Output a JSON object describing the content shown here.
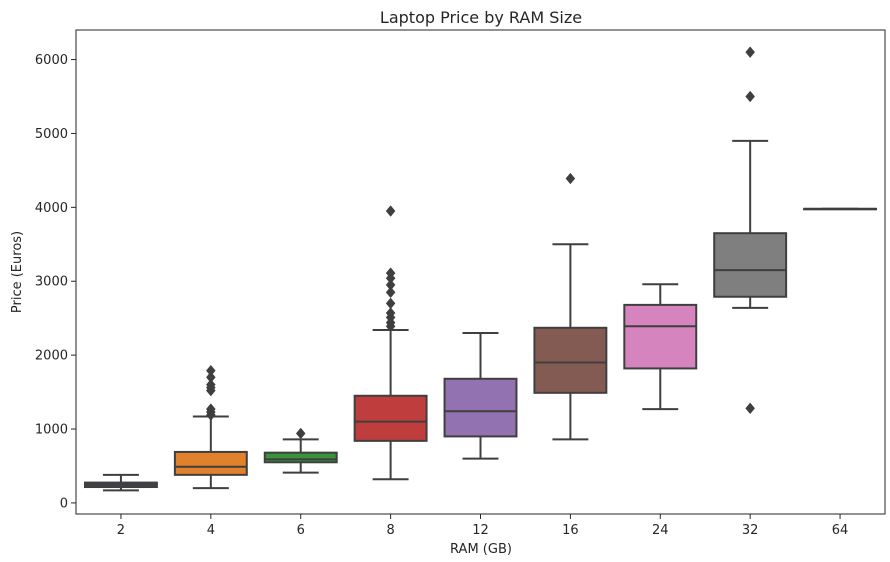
{
  "chart_data": {
    "type": "box",
    "title": "Laptop Price by RAM Size",
    "xlabel": "RAM (GB)",
    "ylabel": "Price (Euros)",
    "categories": [
      "2",
      "4",
      "6",
      "8",
      "12",
      "16",
      "24",
      "32",
      "64"
    ],
    "yticks": [
      0,
      1000,
      2000,
      3000,
      4000,
      5000,
      6000
    ],
    "ylim": [
      -150,
      6400
    ],
    "grid": false,
    "legend": "none",
    "boxes": [
      {
        "category": "2",
        "color": "#3b4f6b",
        "whisker_low": 170,
        "q1": 215,
        "median": 245,
        "q3": 275,
        "whisker_high": 380,
        "outliers": []
      },
      {
        "category": "4",
        "color": "#e1812c",
        "whisker_low": 200,
        "q1": 380,
        "median": 490,
        "q3": 690,
        "whisker_high": 1170,
        "outliers": [
          1190,
          1230,
          1270,
          1520,
          1560,
          1600,
          1700,
          1790
        ]
      },
      {
        "category": "6",
        "color": "#3a923a",
        "whisker_low": 410,
        "q1": 550,
        "median": 590,
        "q3": 680,
        "whisker_high": 860,
        "outliers": [
          940
        ]
      },
      {
        "category": "8",
        "color": "#c03d3e",
        "whisker_low": 320,
        "q1": 840,
        "median": 1100,
        "q3": 1450,
        "whisker_high": 2340,
        "outliers": [
          2390,
          2440,
          2510,
          2570,
          2700,
          2850,
          2950,
          3040,
          3110,
          3950
        ]
      },
      {
        "category": "12",
        "color": "#9372b2",
        "whisker_low": 600,
        "q1": 900,
        "median": 1240,
        "q3": 1680,
        "whisker_high": 2300,
        "outliers": []
      },
      {
        "category": "16",
        "color": "#845b53",
        "whisker_low": 860,
        "q1": 1490,
        "median": 1900,
        "q3": 2370,
        "whisker_high": 3500,
        "outliers": [
          4390
        ]
      },
      {
        "category": "24",
        "color": "#d684bd",
        "whisker_low": 1270,
        "q1": 1820,
        "median": 2390,
        "q3": 2680,
        "whisker_high": 2960,
        "outliers": []
      },
      {
        "category": "32",
        "color": "#7f7f7f",
        "whisker_low": 2640,
        "q1": 2790,
        "median": 3150,
        "q3": 3650,
        "whisker_high": 4900,
        "outliers": [
          1280,
          5500,
          6100
        ]
      },
      {
        "category": "64",
        "color": "#a9aa35",
        "whisker_low": 3980,
        "q1": 3980,
        "median": 3980,
        "q3": 3980,
        "whisker_high": 3980,
        "outliers": []
      }
    ]
  }
}
